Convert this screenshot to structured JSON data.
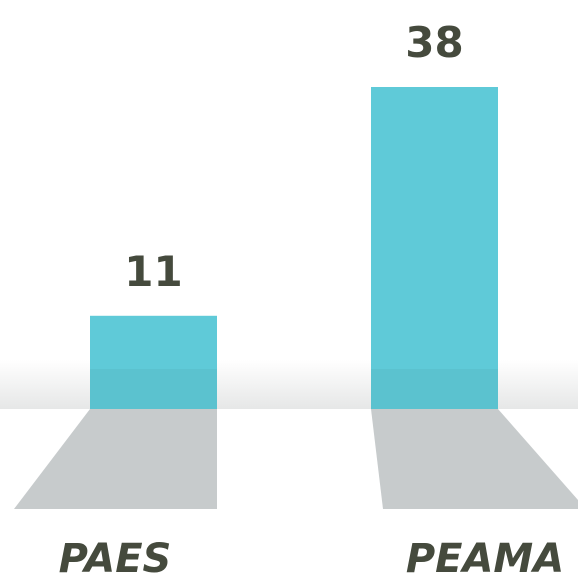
{
  "chart_data": {
    "type": "bar",
    "categories": [
      "PAES",
      "PEAMA"
    ],
    "values": [
      11,
      38
    ],
    "color": "#5fcad8"
  }
}
